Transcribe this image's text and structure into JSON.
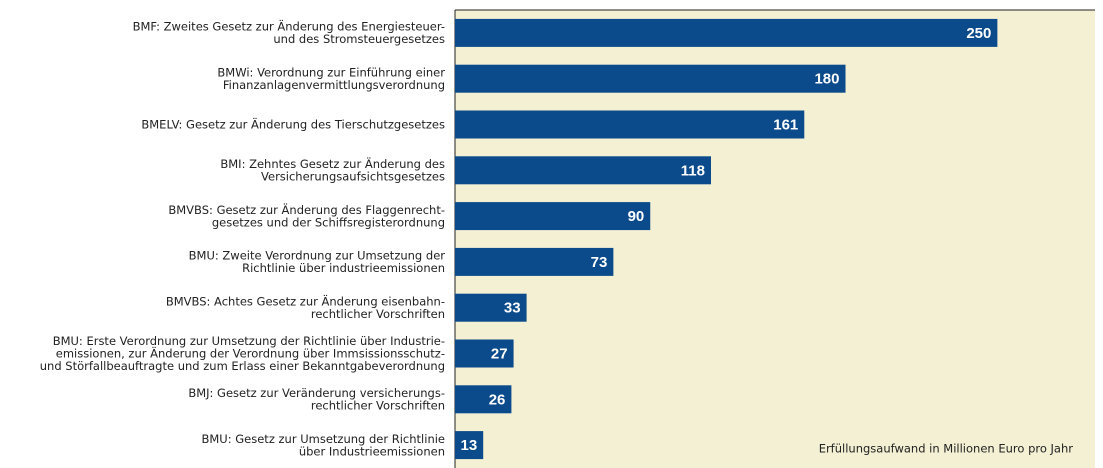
{
  "chart_data": {
    "type": "barh",
    "categories": [
      "BMF: Zweites Gesetz zur Änderung des Energiesteuer-\nund des Stromsteuergesetzes",
      "BMWi: Verordnung zur Einführung einer\nFinanzanlagenvermittlungsverordnung",
      "BMELV: Gesetz zur Änderung des Tierschutzgesetzes",
      "BMI: Zehntes Gesetz zur Änderung des\nVersicherungsaufsichtsgesetzes",
      "BMVBS: Gesetz zur Änderung des Flaggenrecht-\ngesetzes und der Schiffsregisterordnung",
      "BMU: Zweite Verordnung zur Umsetzung der\nRichtlinie über industrieemissionen",
      "BMVBS: Achtes Gesetz zur Änderung eisenbahn-\nrechtlicher Vorschriften",
      "BMU: Erste Verordnung zur Umsetzung der Richtlinie über Industrie-\nemissionen, zur Änderung der Verordnung über Immsissionsschutz-\nund Störfallbeauftragte und zum Erlass einer Bekanntgabeverordnung",
      "BMJ: Gesetz zur Veränderung versicherungs-\nrechtlicher Vorschriften",
      "BMU: Gesetz zur Umsetzung der Richtlinie\nüber Industrieemissionen"
    ],
    "values": [
      250,
      180,
      161,
      118,
      90,
      73,
      33,
      27,
      26,
      13
    ],
    "color": "#0b4a8b",
    "background": "#f3f0d3",
    "xlim": [
      0,
      295
    ],
    "annotation": "Erfüllungsaufwand in Millionen Euro pro Jahr"
  }
}
